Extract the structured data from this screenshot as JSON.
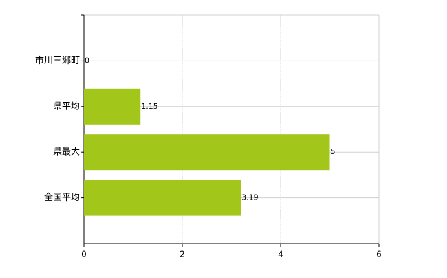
{
  "chart_data": {
    "type": "bar",
    "orientation": "horizontal",
    "categories": [
      "市川三郷町",
      "県平均",
      "県最大",
      "全国平均"
    ],
    "values": [
      0,
      1.15,
      5,
      3.19
    ],
    "color": "#a3c61b",
    "xlim": [
      0,
      6
    ],
    "xticks": [
      0,
      2,
      4,
      6
    ],
    "grid": true
  }
}
